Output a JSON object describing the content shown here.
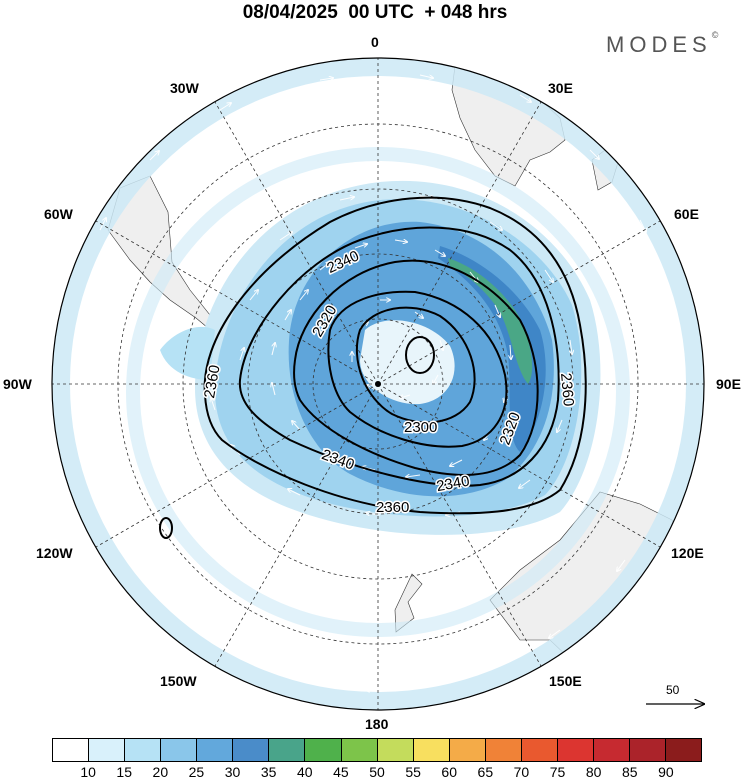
{
  "title": "08/04/2025  00 UTC  + 048 hrs",
  "brand": "MODES",
  "brand_mark": "©",
  "longitude_labels": {
    "0": "0",
    "30E": "30E",
    "60E": "60E",
    "90E": "90E",
    "120E": "120E",
    "150E": "150E",
    "180": "180",
    "150W": "150W",
    "120W": "120W",
    "90W": "90W",
    "60W": "60W",
    "30W": "30W"
  },
  "contour_labels": [
    "2340",
    "2320",
    "2360",
    "2300",
    "2320",
    "2340",
    "2360",
    "2340",
    "2360"
  ],
  "reference_vector": {
    "value": "50"
  },
  "legend": {
    "ticks": [
      "10",
      "15",
      "20",
      "25",
      "30",
      "35",
      "40",
      "45",
      "50",
      "55",
      "60",
      "65",
      "70",
      "75",
      "80",
      "85",
      "90"
    ],
    "colors": [
      "#ffffff",
      "#d9f1fb",
      "#b6e2f5",
      "#8ac6ea",
      "#62a8dc",
      "#4a8cc9",
      "#49a48a",
      "#4fb14b",
      "#7dc44a",
      "#c4dc5c",
      "#f8df5f",
      "#f4ab48",
      "#f08237",
      "#e9592f",
      "#dc3530",
      "#c62a30",
      "#ab232a",
      "#8b1c1c"
    ]
  },
  "colors": {
    "land": "#efefef",
    "band_light": "#cde9f6",
    "band_mid": "#9fd3ef",
    "band_dark": "#5fa5da",
    "band_core": "#3f86c7",
    "jet_max": "#4aa786"
  }
}
